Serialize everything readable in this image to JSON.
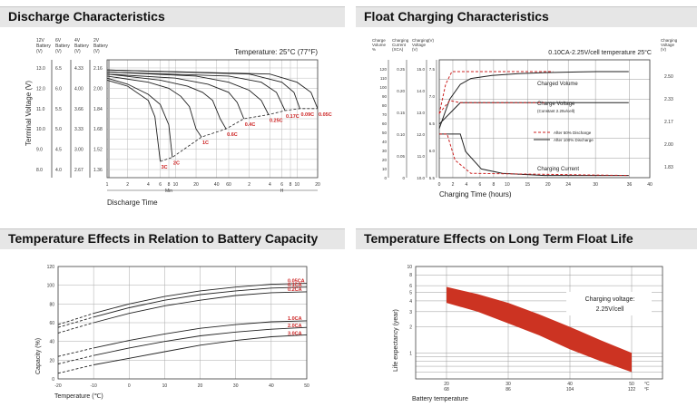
{
  "panels": {
    "p1": {
      "title": "Discharge Characteristics"
    },
    "p2": {
      "title": "Float Charging Characteristics"
    },
    "p3": {
      "title": "Temperature Effects in Relation to Battery Capacity"
    },
    "p4": {
      "title": "Temperature Effects on Long Term Float Life"
    }
  },
  "chart_data": [
    {
      "type": "line",
      "title": "Discharge Characteristics",
      "annotation": "Temperature: 25°C (77°F)",
      "xlabel": "Discharge Time",
      "ylabel": "Terminal Voltage (V)",
      "x_ticks": [
        "1",
        "2",
        "4",
        "6",
        "8",
        "10",
        "20",
        "40",
        "60",
        "2",
        "4",
        "6",
        "8",
        "10",
        "20"
      ],
      "x_units": [
        "Min",
        "H"
      ],
      "axis_headers": [
        [
          "12V",
          "Battery",
          "(V)"
        ],
        [
          "6V",
          "Battery",
          "(V)"
        ],
        [
          "4V",
          "Battery",
          "(V)"
        ],
        [
          "2V",
          "Battery",
          "(V)"
        ]
      ],
      "y_axes": {
        "12V": [
          "13.0",
          "12.0",
          "11.0",
          "10.0",
          "9.0",
          "8.0"
        ],
        "6V": [
          "6.5",
          "6.0",
          "5.5",
          "5.0",
          "4.5",
          "4.0"
        ],
        "4V": [
          "4.33",
          "4.00",
          "3.66",
          "3.33",
          "3.00",
          "2.67"
        ],
        "2V": [
          "2.16",
          "2.00",
          "1.84",
          "1.68",
          "1.52",
          "1.36"
        ]
      },
      "series": [
        {
          "name": "3C",
          "x": [
            1,
            2,
            4,
            5,
            6
          ],
          "y": [
            12.4,
            12.1,
            11.4,
            10.6,
            8.4
          ]
        },
        {
          "name": "2C",
          "x": [
            1,
            2,
            4,
            6,
            8,
            9
          ],
          "y": [
            12.5,
            12.2,
            11.7,
            11.2,
            10.2,
            8.6
          ]
        },
        {
          "name": "1C",
          "x": [
            1,
            4,
            8,
            12,
            16,
            20,
            24
          ],
          "y": [
            12.6,
            12.3,
            12.0,
            11.6,
            11.1,
            10.0,
            9.6
          ]
        },
        {
          "name": "0.6C",
          "x": [
            1,
            6,
            15,
            25,
            35,
            45,
            55
          ],
          "y": [
            12.7,
            12.4,
            12.1,
            11.8,
            11.4,
            10.5,
            10.0
          ]
        },
        {
          "name": "0.4C",
          "x": [
            1,
            10,
            30,
            60,
            80,
            100
          ],
          "y": [
            12.7,
            12.5,
            12.2,
            11.8,
            11.3,
            10.5
          ]
        },
        {
          "name": "0.25C",
          "x": [
            1,
            20,
            60,
            120,
            180,
            230
          ],
          "y": [
            12.8,
            12.6,
            12.3,
            11.9,
            11.4,
            10.7
          ]
        },
        {
          "name": "0.17C",
          "x": [
            1,
            60,
            180,
            300,
            400
          ],
          "y": [
            12.8,
            12.6,
            12.3,
            11.8,
            10.9
          ]
        },
        {
          "name": "0.09C",
          "x": [
            1,
            120,
            360,
            540,
            660
          ],
          "y": [
            12.9,
            12.7,
            12.3,
            11.8,
            11.0
          ]
        },
        {
          "name": "0.05C",
          "x": [
            1,
            240,
            600,
            960,
            1200
          ],
          "y": [
            12.9,
            12.7,
            12.3,
            11.8,
            11.0
          ]
        }
      ]
    },
    {
      "type": "line",
      "title": "Float Charging Characteristics",
      "annotation": "0.10CA-2.25V/cell  temperature 25°C",
      "xlabel": "Charging Time (hours)",
      "x_ticks": [
        "0",
        "2",
        "4",
        "6",
        "8",
        "10",
        "15",
        "20",
        "24",
        "30",
        "36",
        "40"
      ],
      "left_headers": [
        [
          "Charge",
          "Volume",
          "%"
        ],
        [
          "Charging",
          "Current",
          "(XCA)"
        ],
        [
          "Charging",
          "Voltage",
          "(V)"
        ],
        [
          "(V)"
        ]
      ],
      "right_header": [
        "Charging",
        "Voltage",
        "(V)"
      ],
      "y_axes": {
        "charge_volume": [
          "120",
          "110",
          "100",
          "90",
          "80",
          "70",
          "60",
          "50",
          "40",
          "30",
          "20",
          "10",
          "0"
        ],
        "charging_current": [
          "0.25",
          "0.20",
          "0.15",
          "0.10",
          "0.05",
          "0"
        ],
        "charging_voltage": [
          "15.0",
          "14.0",
          "13.0",
          "12.0",
          "11.0",
          "10.0"
        ],
        "cell_voltage": [
          "7.5",
          "7.0",
          "6.5",
          "6.0",
          "5.5"
        ],
        "right": [
          "2.50",
          "2.33",
          "2.17",
          "2.00",
          "1.83"
        ]
      },
      "curve_labels": [
        "Charged Volume",
        "Charge Voltage",
        "(Constant 2.25v/cell)",
        "Charging Current"
      ],
      "legend": [
        "After 50% Discharge",
        "After 100% Discharge"
      ],
      "series": [
        {
          "name": "Charged Volume",
          "x": [
            0,
            2,
            4,
            6,
            10,
            15,
            20,
            30,
            36
          ],
          "y": [
            50,
            80,
            95,
            101,
            104,
            106,
            107,
            108,
            108
          ]
        },
        {
          "name": "Charge Voltage",
          "x": [
            0,
            2,
            4,
            6,
            10,
            20,
            36
          ],
          "y": [
            12.5,
            13.0,
            13.5,
            13.5,
            13.5,
            13.5,
            13.5
          ]
        },
        {
          "name": "Charging Current",
          "x": [
            0,
            2,
            4,
            5,
            8,
            12,
            20,
            36
          ],
          "y": [
            0.1,
            0.1,
            0.1,
            0.06,
            0.02,
            0.01,
            0.005,
            0.005
          ]
        }
      ]
    },
    {
      "type": "line",
      "title": "Temperature Effects in Relation to Battery Capacity",
      "xlabel": "Temperature (℃)",
      "ylabel": "Capacity (%)",
      "x_ticks": [
        "-20",
        "-10",
        "0",
        "10",
        "20",
        "30",
        "40",
        "50"
      ],
      "y_ticks": [
        "0",
        "20",
        "40",
        "60",
        "80",
        "100",
        "120"
      ],
      "xlim": [
        -20,
        50
      ],
      "ylim": [
        0,
        120
      ],
      "series": [
        {
          "name": "0.05CA",
          "x": [
            -20,
            -10,
            0,
            10,
            20,
            30,
            40,
            50
          ],
          "y": [
            58,
            70,
            80,
            88,
            94,
            98,
            101,
            102
          ]
        },
        {
          "name": "0.1CA",
          "x": [
            -20,
            -10,
            0,
            10,
            20,
            30,
            40,
            50
          ],
          "y": [
            55,
            66,
            76,
            84,
            90,
            94,
            97,
            98
          ]
        },
        {
          "name": "0.2CA",
          "x": [
            -20,
            -10,
            0,
            10,
            20,
            30,
            40,
            50
          ],
          "y": [
            49,
            60,
            70,
            78,
            84,
            89,
            92,
            93
          ]
        },
        {
          "name": "1.0CA",
          "x": [
            -20,
            -10,
            0,
            10,
            20,
            30,
            40,
            50
          ],
          "y": [
            24,
            33,
            41,
            48,
            54,
            58,
            61,
            62
          ]
        },
        {
          "name": "2.0CA",
          "x": [
            -20,
            -10,
            0,
            10,
            20,
            30,
            40,
            50
          ],
          "y": [
            16,
            25,
            33,
            40,
            46,
            50,
            53,
            55
          ]
        },
        {
          "name": "3.0CA",
          "x": [
            -20,
            -10,
            0,
            10,
            20,
            30,
            40,
            50
          ],
          "y": [
            6,
            15,
            22,
            29,
            36,
            41,
            45,
            47
          ]
        }
      ]
    },
    {
      "type": "area",
      "title": "Temperature Effects on Long Term Float Life",
      "xlabel": "Battery temperature",
      "ylabel": "Life expectancy (year)",
      "annotation": [
        "Charging voltage:",
        "2.25V/cell"
      ],
      "x_ticks_c": [
        "20",
        "30",
        "40",
        "50"
      ],
      "x_ticks_f": [
        "68",
        "86",
        "104",
        "122"
      ],
      "x_units": [
        "°C",
        "°F"
      ],
      "y_ticks": [
        "1",
        "2",
        "3",
        "4",
        "5",
        "6",
        "8",
        "10"
      ],
      "ylim": [
        0.5,
        10
      ],
      "band": {
        "x": [
          20,
          25,
          30,
          35,
          40,
          45,
          50
        ],
        "upper": [
          5.8,
          4.8,
          3.8,
          2.8,
          2.0,
          1.4,
          1.0
        ],
        "lower": [
          3.8,
          3.0,
          2.2,
          1.6,
          1.1,
          0.8,
          0.6
        ]
      },
      "color": "#cc3322"
    }
  ]
}
